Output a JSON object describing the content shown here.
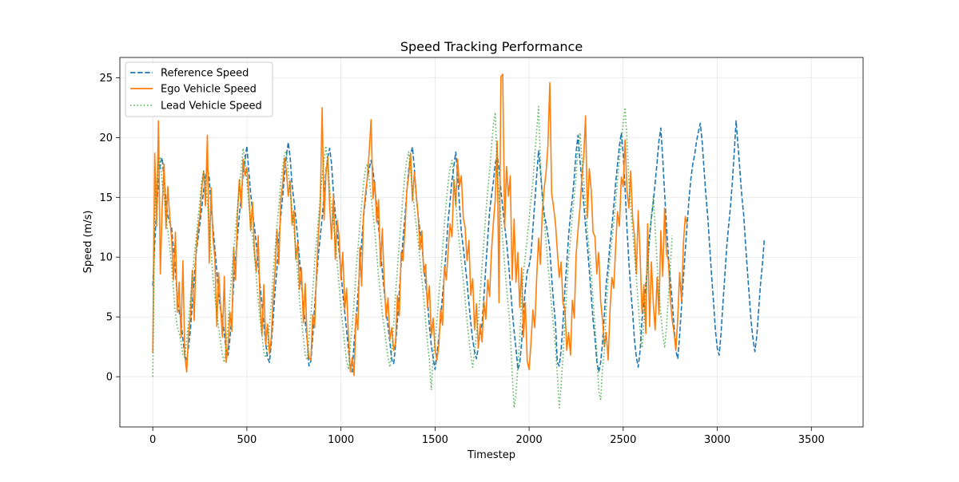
{
  "chart_data": {
    "type": "line",
    "title": "Speed Tracking Performance",
    "xlabel": "Timestep",
    "ylabel": "Speed (m/s)",
    "xlim": [
      -175,
      3775
    ],
    "ylim": [
      -4.2,
      26.7
    ],
    "xticks": [
      0,
      500,
      1000,
      1500,
      2000,
      2500,
      3000,
      3500
    ],
    "yticks": [
      0,
      5,
      10,
      15,
      20,
      25
    ],
    "xtick_labels": [
      "0",
      "500",
      "1000",
      "1500",
      "2000",
      "2500",
      "3000",
      "3500"
    ],
    "ytick_labels": [
      "0",
      "5",
      "10",
      "15",
      "20",
      "25"
    ],
    "grid": true,
    "legend_placement": "top-left",
    "x_start": 0,
    "x_step": 10,
    "series": [
      {
        "name": "Reference Speed",
        "color": "#1f77b4",
        "style": "dashed",
        "values": [
          7.6,
          11.2,
          13.8,
          16.4,
          17.9,
          18.3,
          16.5,
          14.8,
          13.4,
          12.9,
          12.5,
          10.6,
          8.9,
          6.6,
          5.4,
          4.7,
          3.1,
          1.8,
          1.4,
          2.5,
          3.9,
          6.1,
          8.2,
          10.3,
          11.5,
          12.8,
          14.1,
          15.6,
          16.8,
          17.5,
          16.6,
          14.1,
          12.5,
          10.7,
          8.8,
          6.8,
          5.6,
          4.8,
          3.6,
          2.2,
          1.8,
          3.2,
          5.1,
          7.8,
          9.9,
          11.7,
          13.5,
          15.2,
          16.9,
          18.1,
          19.3,
          17.2,
          15.4,
          13.8,
          12.6,
          11.1,
          9.3,
          7.6,
          6.1,
          4.4,
          2.8,
          1.6,
          1.2,
          2.8,
          4.9,
          7.2,
          9.1,
          11.6,
          13.4,
          15.1,
          16.8,
          18.5,
          19.6,
          18.3,
          16.1,
          14.7,
          13.3,
          11.6,
          9.8,
          7.9,
          5.8,
          4.6,
          3.1,
          0.9,
          1.3,
          3.3,
          5.9,
          8.1,
          10.2,
          11.7,
          13.3,
          15.2,
          17.2,
          18.4,
          19.1,
          17.8,
          15.4,
          13.6,
          12.1,
          10.5,
          8.8,
          6.9,
          5.4,
          3.9,
          2.2,
          0.8,
          0.4,
          2.9,
          4.7,
          6.8,
          9.1,
          11.2,
          13.4,
          14.8,
          16.6,
          17.4,
          18.1,
          17.3,
          15.8,
          14.2,
          12.6,
          10.6,
          8.8,
          7.1,
          5.6,
          4.2,
          2.9,
          1.4,
          1.1,
          2.6,
          4.7,
          7.1,
          9.4,
          11.5,
          13.4,
          15.5,
          17.3,
          18.6,
          19.2,
          17.4,
          15.1,
          13.5,
          12.2,
          11.1,
          9.2,
          7.8,
          6.4,
          4.2,
          2.6,
          1.6,
          0.6,
          1.9,
          3.3,
          4.8,
          6.9,
          8.6,
          10.8,
          13.1,
          14.7,
          16.4,
          17.6,
          18.8,
          16.9,
          14.3,
          12.1,
          10.8,
          9.4,
          7.9,
          6.2,
          4.5,
          3.1,
          2.1,
          1.5,
          2.5,
          3.8,
          4.4,
          6.8,
          9.2,
          11.6,
          13.8,
          15.1,
          16.3,
          17.8,
          18.6,
          17.4,
          15.6,
          14.1,
          12.6,
          11.3,
          9.6,
          7.7,
          5.6,
          3.8,
          2.4,
          0.6,
          1.1,
          2.8,
          5.5,
          7.4,
          8.8,
          9.3,
          10.2,
          12.4,
          14.6,
          16.8,
          18.9,
          17.3,
          15.1,
          13.6,
          12.8,
          11.8,
          10.6,
          8.3,
          6.2,
          4.4,
          1.2,
          0.9,
          2.2,
          4.6,
          7.3,
          9.5,
          11.8,
          13.6,
          14.9,
          16.7,
          18.8,
          20.2,
          18.1,
          16.4,
          14.5,
          12.6,
          10.8,
          8.9,
          6.8,
          4.7,
          3.2,
          1.3,
          0.4,
          1.2,
          2.8,
          5.3,
          7.8,
          9.3,
          11.1,
          12.6,
          14.3,
          16.2,
          17.8,
          19.3,
          20.4,
          18.6,
          15.7,
          12.4,
          9.6,
          7.3,
          5.4,
          3.1,
          1.6,
          0.8,
          2.2,
          4.8,
          6.2,
          7.7,
          9.6,
          11.8,
          13.3,
          14.6,
          16.2,
          17.9,
          19.7,
          20.8,
          18.2,
          15.4,
          12.6,
          10.1,
          8.2,
          6.4,
          4.3,
          2.2,
          1.5,
          3.4,
          5.9,
          8.3,
          10.6,
          12.8,
          14.9,
          16.6,
          17.8,
          18.6,
          19.7,
          20.5,
          21.2,
          19.6,
          17.2,
          15.1,
          13.2,
          10.8,
          8.4,
          6.3,
          3.9,
          2.4,
          1.8,
          3.6,
          6.1,
          8.4,
          10.8,
          12.6,
          14.2,
          16.3,
          18.7,
          21.4,
          19.4,
          17.3,
          15.2,
          13.6,
          11.2,
          8.9,
          6.7,
          4.6,
          3.1,
          2.1,
          3.4,
          5.6,
          7.8,
          9.4,
          11.5
        ]
      },
      {
        "name": "Ego Vehicle Speed",
        "color": "#ff7f0e",
        "style": "solid",
        "values": [
          2.0,
          18.7,
          12.6,
          21.4,
          8.6,
          14.2,
          17.8,
          12.4,
          15.9,
          13.3,
          11.6,
          8.1,
          12.1,
          5.4,
          7.9,
          3.3,
          9.7,
          1.8,
          0.4,
          3.6,
          5.1,
          8.9,
          4.7,
          10.6,
          12.3,
          13.5,
          15.7,
          17.2,
          14.3,
          20.2,
          9.5,
          15.8,
          11.6,
          9.9,
          4.2,
          8.7,
          5.9,
          3.3,
          8.4,
          1.2,
          2.6,
          5.4,
          3.8,
          10.8,
          8.1,
          13.7,
          16.5,
          14.1,
          18.2,
          16.8,
          17.5,
          15.4,
          12.2,
          14.6,
          10.6,
          8.8,
          11.8,
          6.1,
          3.5,
          7.7,
          2.7,
          4.4,
          1.9,
          3.3,
          6.8,
          8.9,
          12.3,
          9.4,
          14.8,
          16.1,
          18.3,
          17.2,
          15.1,
          16.4,
          12.7,
          13.9,
          9.8,
          11.2,
          7.3,
          9.1,
          4.5,
          7.8,
          3.1,
          1.6,
          1.4,
          5.2,
          4.1,
          8.6,
          11.9,
          14.3,
          22.5,
          13.1,
          16.9,
          18.4,
          14.3,
          11.5,
          15.2,
          9.8,
          13.1,
          11.7,
          8.1,
          10.4,
          5.6,
          7.4,
          3.2,
          0.4,
          1.6,
          0.1,
          5.3,
          3.9,
          10.8,
          7.6,
          13.6,
          15.3,
          16.6,
          18.8,
          21.5,
          14.9,
          16.3,
          12.9,
          14.8,
          9.2,
          12.4,
          7.8,
          4.9,
          6.6,
          3.1,
          4.1,
          2.2,
          2.8,
          6.8,
          5.1,
          10.4,
          9.7,
          12.3,
          15.6,
          16.8,
          18.7,
          14.7,
          17.1,
          15.3,
          13.5,
          10.6,
          12.2,
          8.7,
          9.4,
          5.8,
          7.6,
          3.4,
          4.9,
          2.3,
          1.4,
          2.6,
          5.7,
          4.3,
          9.2,
          8.1,
          10.6,
          12.8,
          11.7,
          16.5,
          14.3,
          18.2,
          15.9,
          16.8,
          13.3,
          12.5,
          9.7,
          11.4,
          6.8,
          8.2,
          3.9,
          6.1,
          2.4,
          4.4,
          2.9,
          6.3,
          4.8,
          8.1,
          6.7,
          10.5,
          12.9,
          14.8,
          19.7,
          6.2,
          25.1,
          25.3,
          12.4,
          17.6,
          15.1,
          16.8,
          8.1,
          13.2,
          7.9,
          10.4,
          5.8,
          9.1,
          3.3,
          6.2,
          1.3,
          0.6,
          2.8,
          5.6,
          4.1,
          8.2,
          11.6,
          9.4,
          13.8,
          15.7,
          17.1,
          19.3,
          24.6,
          15.3,
          14.2,
          12.8,
          10.5,
          8.3,
          9.6,
          6.1,
          5.8,
          2.2,
          3.7,
          1.8,
          6.4,
          4.9,
          10.2,
          12.3,
          14.1,
          16.6,
          18.4,
          21.8,
          13.3,
          17.4,
          15.6,
          12.1,
          11.7,
          8.6,
          10.4,
          6.3,
          4.8,
          2.5,
          3.7,
          1.4,
          5.6,
          8.3,
          7.4,
          10.9,
          13.8,
          12.6,
          16.7,
          15.9,
          19.8,
          15.6,
          14.1,
          17.2,
          13.3,
          11.8,
          8.6,
          13.9,
          10.1,
          5.3,
          7.7,
          3.6,
          12.8,
          4.2,
          9.6,
          6.1,
          3.9,
          8.3,
          5.2,
          12.2,
          8.4,
          14.1,
          10.3,
          9.7,
          6.6,
          4.8,
          3.7,
          2.2,
          4.9,
          8.7,
          6.3,
          11.2,
          13.4,
          12.7
        ]
      },
      {
        "name": "Lead Vehicle Speed",
        "color": "#2ca02c",
        "style": "dotted",
        "values": [
          0.0,
          13.6,
          16.2,
          17.8,
          18.4,
          16.1,
          15.2,
          13.3,
          12.2,
          10.9,
          9.3,
          7.2,
          5.3,
          4.2,
          3.6,
          2.9,
          1.8,
          1.6,
          3.1,
          4.6,
          6.4,
          8.2,
          10.1,
          11.6,
          13.2,
          14.7,
          16.4,
          17.2,
          16.3,
          14.6,
          12.8,
          10.4,
          8.3,
          6.6,
          5.4,
          4.1,
          2.9,
          1.8,
          1.2,
          2.6,
          4.4,
          6.7,
          8.7,
          10.6,
          12.4,
          14.1,
          15.8,
          17.4,
          19.1,
          18.2,
          16.3,
          14.5,
          13.1,
          11.7,
          10.2,
          8.3,
          6.4,
          4.8,
          3.5,
          2.1,
          1.6,
          2.4,
          4.3,
          6.2,
          8.8,
          10.7,
          12.6,
          14.2,
          16.2,
          17.5,
          18.6,
          18.9,
          17.1,
          15.4,
          14.1,
          12.3,
          10.6,
          8.6,
          6.4,
          4.7,
          3.3,
          1.8,
          1.4,
          3.1,
          5.2,
          7.1,
          9.6,
          11.4,
          13.1,
          14.9,
          16.8,
          18.1,
          19.3,
          17.9,
          15.7,
          14.2,
          12.9,
          11.4,
          9.6,
          7.6,
          5.7,
          4.2,
          2.6,
          1.3,
          0.6,
          2.6,
          4.3,
          6.2,
          8.8,
          10.7,
          12.6,
          14.4,
          16.1,
          17.4,
          17.8,
          16.6,
          15.1,
          13.7,
          12.1,
          10.3,
          8.4,
          6.9,
          5.3,
          4.1,
          2.8,
          1.6,
          0.8,
          2.2,
          4.3,
          6.8,
          9.1,
          11.2,
          13.1,
          15.2,
          16.9,
          18.1,
          18.8,
          17.3,
          15.6,
          14.1,
          12.6,
          11.3,
          9.8,
          8.1,
          6.6,
          4.6,
          2.9,
          1.4,
          -1.1,
          1.6,
          3.1,
          4.6,
          6.8,
          8.5,
          10.6,
          12.8,
          14.6,
          16.3,
          17.5,
          18.1,
          16.6,
          14.7,
          12.6,
          11.1,
          9.6,
          8.1,
          6.5,
          4.6,
          3.2,
          1.8,
          0.8,
          2.1,
          3.6,
          4.7,
          7.1,
          9.3,
          11.4,
          13.6,
          15.6,
          17.1,
          19.2,
          21.1,
          22.1,
          17.3,
          15.1,
          13.4,
          11.4,
          9.3,
          7.4,
          5.8,
          3.9,
          0.2,
          -2.6,
          -1.4,
          0.8,
          3.2,
          6.4,
          8.8,
          10.1,
          11.6,
          13.2,
          14.8,
          16.3,
          18.6,
          20.5,
          22.6,
          17.9,
          15.1,
          13.1,
          11.2,
          9.4,
          7.6,
          5.8,
          4.1,
          2.4,
          0.2,
          -2.6,
          -0.8,
          1.8,
          4.5,
          7.4,
          9.8,
          11.6,
          13.5,
          15.2,
          16.8,
          19.1,
          20.4,
          18.3,
          16.4,
          14.3,
          12.1,
          10.4,
          8.6,
          6.5,
          4.1,
          2.1,
          -1.2,
          -1.9,
          0.7,
          2.2,
          5.6,
          8.3,
          9.8,
          11.4,
          12.9,
          14.6,
          16.5,
          18.1,
          19.6,
          21.2,
          22.5,
          19.8,
          16.4,
          14.2,
          12.1,
          10.3,
          8.2,
          6.1,
          3.8,
          2.4,
          4.6,
          7.1,
          9.3,
          11.2,
          13.4,
          15.1,
          12.4,
          9.6,
          7.1,
          5.2,
          3.6,
          2.4,
          4.2,
          6.7,
          8.9,
          11.8
        ]
      }
    ]
  }
}
